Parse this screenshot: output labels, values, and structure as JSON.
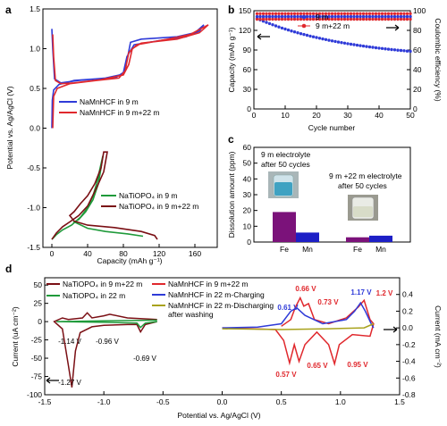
{
  "panel_letters": {
    "a": "a",
    "b": "b",
    "c": "c",
    "d": "d"
  },
  "chart_data": [
    {
      "panel": "a",
      "type": "line",
      "xlabel": "Capacity (mAh g⁻¹)",
      "ylabel": "Potential vs. Ag/AgCl (V)",
      "xlim": [
        -10,
        185
      ],
      "ylim": [
        -1.5,
        1.5
      ],
      "xticks": [
        "0",
        "40",
        "80",
        "120",
        "160"
      ],
      "yticks": [
        "-1.5",
        "-1.0",
        "-0.5",
        "0.0",
        "0.5",
        "1.0",
        "1.5"
      ],
      "legend_top": [
        "NaMnHCF in 9 m",
        "NaMnHCF in 9 m+22 m"
      ],
      "legend_bottom": [
        "NaTiOPO₄ in 9 m",
        "NaTiOPO₄ in 9 m+22 m"
      ],
      "series": [
        {
          "name": "NaMnHCF in 9 m",
          "color": "#2f3bd8",
          "points": [
            [
              0,
              0.0
            ],
            [
              0.5,
              0.35
            ],
            [
              2,
              0.48
            ],
            [
              8,
              0.55
            ],
            [
              25,
              0.6
            ],
            [
              50,
              0.62
            ],
            [
              72,
              0.64
            ],
            [
              80,
              0.7
            ],
            [
              84,
              0.9
            ],
            [
              92,
              1.05
            ],
            [
              120,
              1.1
            ],
            [
              150,
              1.15
            ],
            [
              165,
              1.22
            ],
            [
              170,
              1.3
            ],
            [
              170,
              1.3
            ],
            [
              160,
              1.2
            ],
            [
              140,
              1.15
            ],
            [
              100,
              1.12
            ],
            [
              88,
              1.08
            ],
            [
              84,
              0.85
            ],
            [
              80,
              0.68
            ],
            [
              60,
              0.63
            ],
            [
              30,
              0.6
            ],
            [
              10,
              0.57
            ],
            [
              3,
              0.62
            ],
            [
              1,
              1.0
            ],
            [
              0,
              1.25
            ]
          ]
        },
        {
          "name": "NaMnHCF in 9 m+22 m",
          "color": "#e0282d",
          "points": [
            [
              1,
              0.0
            ],
            [
              2,
              0.4
            ],
            [
              6,
              0.5
            ],
            [
              20,
              0.56
            ],
            [
              50,
              0.6
            ],
            [
              75,
              0.63
            ],
            [
              82,
              0.72
            ],
            [
              86,
              0.95
            ],
            [
              95,
              1.05
            ],
            [
              130,
              1.12
            ],
            [
              155,
              1.18
            ],
            [
              168,
              1.26
            ],
            [
              175,
              1.3
            ],
            [
              175,
              1.3
            ],
            [
              165,
              1.2
            ],
            [
              140,
              1.12
            ],
            [
              100,
              1.07
            ],
            [
              90,
              1.0
            ],
            [
              86,
              0.8
            ],
            [
              80,
              0.67
            ],
            [
              55,
              0.61
            ],
            [
              25,
              0.57
            ],
            [
              10,
              0.56
            ],
            [
              4,
              0.6
            ],
            [
              2,
              0.9
            ],
            [
              1,
              1.18
            ]
          ]
        },
        {
          "name": "NaTiOPO₄ in 9 m",
          "color": "#1f9a3a",
          "points": [
            [
              0,
              -1.4
            ],
            [
              5,
              -1.34
            ],
            [
              12,
              -1.28
            ],
            [
              22,
              -1.22
            ],
            [
              32,
              -1.12
            ],
            [
              40,
              -1.0
            ],
            [
              46,
              -0.85
            ],
            [
              50,
              -0.7
            ],
            [
              54,
              -0.5
            ],
            [
              57,
              -0.35
            ],
            [
              57,
              -0.35
            ],
            [
              55,
              -0.5
            ],
            [
              52,
              -0.7
            ],
            [
              46,
              -0.9
            ],
            [
              38,
              -1.05
            ],
            [
              30,
              -1.15
            ],
            [
              25,
              -1.18
            ],
            [
              40,
              -1.26
            ],
            [
              60,
              -1.3
            ],
            [
              85,
              -1.33
            ],
            [
              102,
              -1.36
            ]
          ]
        },
        {
          "name": "NaTiOPO₄ in 9 m+22 m",
          "color": "#7a0f14",
          "points": [
            [
              0,
              -1.4
            ],
            [
              5,
              -1.32
            ],
            [
              12,
              -1.24
            ],
            [
              20,
              -1.18
            ],
            [
              30,
              -1.1
            ],
            [
              40,
              -0.98
            ],
            [
              50,
              -0.75
            ],
            [
              58,
              -0.55
            ],
            [
              62,
              -0.3
            ],
            [
              58,
              -0.3
            ],
            [
              55,
              -0.5
            ],
            [
              48,
              -0.7
            ],
            [
              40,
              -0.85
            ],
            [
              32,
              -0.95
            ],
            [
              25,
              -1.05
            ],
            [
              20,
              -1.1
            ],
            [
              25,
              -1.17
            ],
            [
              40,
              -1.22
            ],
            [
              70,
              -1.25
            ],
            [
              100,
              -1.3
            ],
            [
              115,
              -1.35
            ],
            [
              118,
              -1.4
            ]
          ]
        }
      ]
    },
    {
      "panel": "b",
      "type": "scatter",
      "xlabel": "Cycle number",
      "ylabel": "Capacity (mAh g⁻¹)",
      "y2label": "Coulombic efficiency (%)",
      "xlim": [
        0,
        50
      ],
      "ylim": [
        0,
        150
      ],
      "y2lim": [
        0,
        100
      ],
      "xticks": [
        "0",
        "10",
        "20",
        "30",
        "40",
        "50"
      ],
      "yticks": [
        "0",
        "30",
        "60",
        "90",
        "120",
        "150"
      ],
      "y2ticks": [
        "0",
        "20",
        "40",
        "60",
        "80",
        "100"
      ],
      "legend": [
        "9 m",
        "9 m+22 m"
      ],
      "series": [
        {
          "name": "9 m",
          "color": "#2f3bd8",
          "kind": "capacity",
          "x_start": 1,
          "x_end": 50,
          "y_start": 138,
          "y_end": 88
        },
        {
          "name": "9 m+22 m",
          "color": "#e0282d",
          "kind": "capacity",
          "x_start": 1,
          "x_end": 50,
          "y_start": 137,
          "y_end": 137
        },
        {
          "name": "9 m",
          "color": "#2f3bd8",
          "kind": "efficiency",
          "x_start": 1,
          "x_end": 50,
          "y_start": 94,
          "y_end": 94
        },
        {
          "name": "9 m+22 m",
          "color": "#e0282d",
          "kind": "efficiency",
          "x_start": 1,
          "x_end": 50,
          "y_start": 97,
          "y_end": 97
        }
      ]
    },
    {
      "panel": "c",
      "type": "bar",
      "ylabel": "Dissolution amount (ppm)",
      "ylim": [
        0,
        60
      ],
      "yticks": [
        "0",
        "10",
        "20",
        "30",
        "40",
        "50",
        "60"
      ],
      "groups": [
        {
          "title": "9 m electrolyte\nafter  50 cycles",
          "categories": [
            "Fe",
            "Mn"
          ],
          "values": [
            19,
            6
          ]
        },
        {
          "title": "9 m +22 m electrolyte\nafter 50 cycles",
          "categories": [
            "Fe",
            "Mn"
          ],
          "values": [
            3,
            4
          ]
        }
      ],
      "colors": {
        "Fe": "#7b127a",
        "Mn": "#1d1fc6"
      }
    },
    {
      "panel": "d",
      "type": "line",
      "xlabel": "Potential vs. Ag/AgCl (V)",
      "ylabel": "Current (uA cm⁻²)",
      "y2label": "Current (mA cm⁻²)",
      "xlim": [
        -1.5,
        1.5
      ],
      "ylim": [
        -100,
        60
      ],
      "y2lim": [
        -0.8,
        0.6
      ],
      "xticks": [
        "-1.5",
        "-1.0",
        "-0.5",
        "0.0",
        "0.5",
        "1.0",
        "1.5"
      ],
      "yticks": [
        "-100",
        "-75",
        "-50",
        "-25",
        "0",
        "25",
        "50"
      ],
      "y2ticks": [
        "-0.8",
        "-0.6",
        "-0.4",
        "-0.2",
        "0.0",
        "0.2",
        "0.4"
      ],
      "legend_left": [
        "NaTiOPO₄ in 9 m+22 m",
        "NaTiOPO₄ in 22 m"
      ],
      "legend_right": [
        "NaMnHCF in 9 m+22 m",
        "NaMnHCF in 22 m-Charging",
        "NaMnHCF in 22 m-Discharging\nafter washing"
      ],
      "annotations_left": [
        "-1.14 V",
        "-0.96 V",
        "-0.69 V",
        "-1.27 V"
      ],
      "annotations_right": [
        "0.66 V",
        "0.73 V",
        "0.61 V",
        "1.17 V",
        "1.2 V",
        "0.57 V",
        "0.65 V",
        "0.95 V"
      ],
      "series": [
        {
          "name": "NaTiOPO₄ in 9 m+22 m",
          "color": "#7a0f14",
          "axis": "left",
          "points": [
            [
              -0.55,
              3
            ],
            [
              -0.8,
              5
            ],
            [
              -0.95,
              10
            ],
            [
              -1.0,
              8
            ],
            [
              -1.1,
              5
            ],
            [
              -1.14,
              12
            ],
            [
              -1.18,
              5
            ],
            [
              -1.3,
              3
            ],
            [
              -1.35,
              5
            ],
            [
              -1.42,
              0
            ],
            [
              -1.35,
              -10
            ],
            [
              -1.3,
              -60
            ],
            [
              -1.27,
              -90
            ],
            [
              -1.24,
              -40
            ],
            [
              -1.2,
              -15
            ],
            [
              -1.1,
              -7
            ],
            [
              -1.0,
              -5
            ],
            [
              -0.8,
              -4
            ],
            [
              -0.72,
              -4
            ],
            [
              -0.69,
              -14
            ],
            [
              -0.65,
              -4
            ],
            [
              -0.55,
              0
            ]
          ]
        },
        {
          "name": "NaTiOPO₄ in 22 m",
          "color": "#1f9a3a",
          "axis": "left",
          "points": [
            [
              -0.55,
              2
            ],
            [
              -1.0,
              1
            ],
            [
              -1.4,
              0
            ],
            [
              -1.0,
              -1
            ],
            [
              -0.72,
              -2
            ],
            [
              -0.69,
              -8
            ],
            [
              -0.65,
              -2
            ],
            [
              -0.55,
              0
            ]
          ]
        },
        {
          "name": "NaMnHCF in 9 m+22 m",
          "color": "#e0282d",
          "axis": "right",
          "points": [
            [
              0.5,
              0.02
            ],
            [
              0.58,
              0.1
            ],
            [
              0.62,
              0.25
            ],
            [
              0.66,
              0.36
            ],
            [
              0.69,
              0.26
            ],
            [
              0.73,
              0.29
            ],
            [
              0.78,
              0.1
            ],
            [
              0.9,
              0.05
            ],
            [
              1.05,
              0.12
            ],
            [
              1.15,
              0.25
            ],
            [
              1.2,
              0.33
            ],
            [
              1.25,
              0.1
            ],
            [
              1.28,
              0.05
            ],
            [
              1.25,
              -0.1
            ],
            [
              1.1,
              -0.08
            ],
            [
              0.99,
              -0.2
            ],
            [
              0.95,
              -0.43
            ],
            [
              0.9,
              -0.2
            ],
            [
              0.8,
              -0.05
            ],
            [
              0.7,
              -0.2
            ],
            [
              0.65,
              -0.4
            ],
            [
              0.61,
              -0.2
            ],
            [
              0.57,
              -0.42
            ],
            [
              0.52,
              -0.15
            ],
            [
              0.45,
              -0.02
            ],
            [
              0.0,
              0.0
            ]
          ]
        },
        {
          "name": "NaMnHCF in 22 m-Charging",
          "color": "#2f3bd8",
          "axis": "right",
          "points": [
            [
              0.0,
              0.0
            ],
            [
              0.3,
              0.01
            ],
            [
              0.5,
              0.05
            ],
            [
              0.58,
              0.2
            ],
            [
              0.63,
              0.24
            ],
            [
              0.7,
              0.15
            ],
            [
              0.85,
              0.05
            ],
            [
              1.05,
              0.1
            ],
            [
              1.12,
              0.2
            ],
            [
              1.17,
              0.3
            ],
            [
              1.21,
              0.2
            ],
            [
              1.26,
              0.05
            ],
            [
              1.28,
              0.0
            ]
          ]
        },
        {
          "name": "NaMnHCF in 22 m-Discharging\nafter washing",
          "color": "#a8a21c",
          "axis": "right",
          "points": [
            [
              0.0,
              -0.01
            ],
            [
              0.5,
              -0.02
            ],
            [
              0.9,
              -0.01
            ],
            [
              1.2,
              0.0
            ],
            [
              1.28,
              0.05
            ]
          ]
        }
      ]
    }
  ]
}
